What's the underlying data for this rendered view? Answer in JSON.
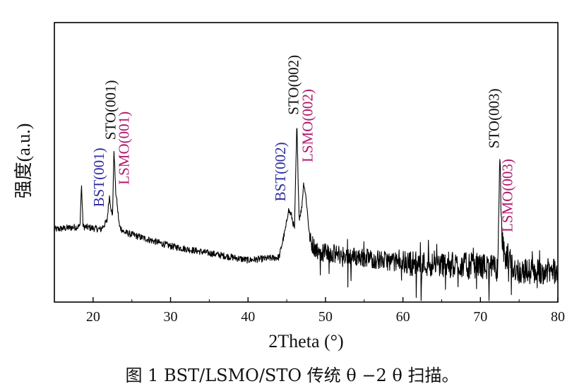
{
  "chart_data": {
    "type": "line",
    "title": "",
    "xlabel": "2Theta (°)",
    "ylabel": "强度(a.u.)",
    "xlim": [
      15,
      80
    ],
    "xticks": [
      20,
      30,
      40,
      50,
      60,
      70,
      80
    ],
    "yticks_shown": false,
    "grid": false,
    "series": [
      {
        "color": "#000000",
        "x": [
          15,
          18.3,
          18.5,
          18.7,
          21,
          21.8,
          22.1,
          22.3,
          22.5,
          22.7,
          22.9,
          23.1,
          23.4,
          24,
          30,
          40,
          44,
          44.9,
          45.2,
          45.6,
          46.0,
          46.3,
          46.6,
          46.9,
          47.2,
          47.5,
          48,
          49,
          60,
          70,
          72.2,
          72.5,
          72.8,
          73.2,
          73.6,
          74.0,
          75,
          80
        ],
        "y": [
          0.26,
          0.27,
          0.42,
          0.27,
          0.26,
          0.29,
          0.38,
          0.34,
          0.3,
          0.55,
          0.4,
          0.35,
          0.27,
          0.25,
          0.2,
          0.15,
          0.16,
          0.27,
          0.33,
          0.31,
          0.26,
          0.64,
          0.3,
          0.33,
          0.43,
          0.37,
          0.22,
          0.18,
          0.14,
          0.13,
          0.12,
          0.52,
          0.22,
          0.14,
          0.17,
          0.13,
          0.11,
          0.11
        ]
      }
    ],
    "annotations": [
      {
        "text": "BST(001)",
        "color": "#2e2e9e",
        "x": 21.4,
        "y": 0.34
      },
      {
        "text": "STO(001)",
        "color": "#111111",
        "x": 22.9,
        "y": 0.58
      },
      {
        "text": "LSMO(001)",
        "color": "#b0186e",
        "x": 24.6,
        "y": 0.42
      },
      {
        "text": "BST(002)",
        "color": "#2e2e9e",
        "x": 44.8,
        "y": 0.36
      },
      {
        "text": "STO(002)",
        "color": "#111111",
        "x": 46.5,
        "y": 0.67
      },
      {
        "text": "LSMO(002)",
        "color": "#b0186e",
        "x": 48.3,
        "y": 0.5
      },
      {
        "text": "STO(003)",
        "color": "#111111",
        "x": 72.4,
        "y": 0.55
      },
      {
        "text": "LSMO(003)",
        "color": "#b0186e",
        "x": 74.1,
        "y": 0.25
      }
    ]
  },
  "caption": "图 1 BST/LSMO/STO 传统  θ −2 θ  扫描。"
}
